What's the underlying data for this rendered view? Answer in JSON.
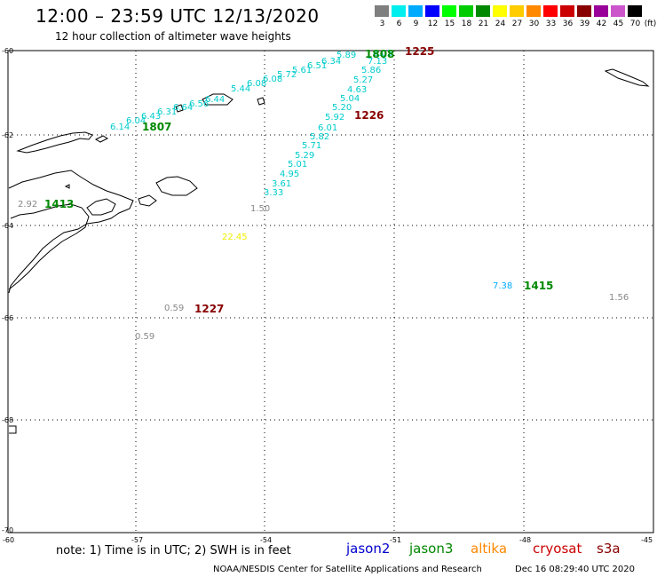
{
  "header": {
    "title": "12:00 – 23:59 UTC 12/13/2020",
    "subtitle": "12 hour collection of altimeter wave heights"
  },
  "legend": {
    "unit": "(ft)",
    "bins": [
      {
        "label": "3",
        "color": "#7f7f7f"
      },
      {
        "label": "6",
        "color": "#00eeee"
      },
      {
        "label": "9",
        "color": "#00aaff"
      },
      {
        "label": "12",
        "color": "#0000ff"
      },
      {
        "label": "15",
        "color": "#00ff00"
      },
      {
        "label": "18",
        "color": "#00cc00"
      },
      {
        "label": "21",
        "color": "#008800"
      },
      {
        "label": "24",
        "color": "#ffff00"
      },
      {
        "label": "27",
        "color": "#ffcc00"
      },
      {
        "label": "30",
        "color": "#ff8800"
      },
      {
        "label": "33",
        "color": "#ff0000"
      },
      {
        "label": "36",
        "color": "#cc0000"
      },
      {
        "label": "39",
        "color": "#880000"
      },
      {
        "label": "42",
        "color": "#990099"
      },
      {
        "label": "45",
        "color": "#cc55cc"
      },
      {
        "label": "70",
        "color": "#000000"
      }
    ]
  },
  "axes": {
    "lon_labels": [
      "-60",
      "-57",
      "-54",
      "-51",
      "-48",
      "-45"
    ],
    "lat_labels": [
      "-60",
      "-62",
      "-64",
      "-66",
      "-68",
      "-70"
    ]
  },
  "observations": [
    {
      "value": "6.14",
      "color": "#00cccc"
    },
    {
      "value": "6.04",
      "color": "#00cccc"
    },
    {
      "value": "6.43",
      "color": "#00cccc"
    },
    {
      "value": "6.31",
      "color": "#00cccc"
    },
    {
      "value": "6.64",
      "color": "#00cccc"
    },
    {
      "value": "6.56",
      "color": "#00cccc"
    },
    {
      "value": "6.44",
      "color": "#00cccc"
    },
    {
      "value": "5.44",
      "color": "#00cccc"
    },
    {
      "value": "6.08",
      "color": "#00cccc"
    },
    {
      "value": "6.08",
      "color": "#00cccc"
    },
    {
      "value": "5.72",
      "color": "#00cccc"
    },
    {
      "value": "5.61",
      "color": "#00cccc"
    },
    {
      "value": "6.51",
      "color": "#00cccc"
    },
    {
      "value": "6.34",
      "color": "#00cccc"
    },
    {
      "value": "5.89",
      "color": "#00cccc"
    },
    {
      "value": "6.05",
      "color": "#00cccc"
    },
    {
      "value": "7.13",
      "color": "#00cccc"
    },
    {
      "value": "5.86",
      "color": "#00cccc"
    },
    {
      "value": "5.27",
      "color": "#00cccc"
    },
    {
      "value": "4.63",
      "color": "#00cccc"
    },
    {
      "value": "5.04",
      "color": "#00cccc"
    },
    {
      "value": "5.20",
      "color": "#00cccc"
    },
    {
      "value": "5.92",
      "color": "#00cccc"
    },
    {
      "value": "6.01",
      "color": "#00cccc"
    },
    {
      "value": "5.82",
      "color": "#00cccc"
    },
    {
      "value": "5.71",
      "color": "#00cccc"
    },
    {
      "value": "5.29",
      "color": "#00cccc"
    },
    {
      "value": "5.01",
      "color": "#00cccc"
    },
    {
      "value": "4.95",
      "color": "#00cccc"
    },
    {
      "value": "3.61",
      "color": "#00cccc"
    },
    {
      "value": "3.33",
      "color": "#00cccc"
    },
    {
      "value": "1.50",
      "color": "#888888"
    },
    {
      "value": "2.92",
      "color": "#888888"
    },
    {
      "value": "22.45",
      "color": "#eeee00"
    },
    {
      "value": "7.38",
      "color": "#00aaff"
    },
    {
      "value": "1.56",
      "color": "#888888"
    },
    {
      "value": "0.59",
      "color": "#888888"
    },
    {
      "value": "0.59",
      "color": "#888888"
    }
  ],
  "time_labels": [
    {
      "text": "1225",
      "color": "#880000"
    },
    {
      "text": "1808",
      "color": "#008800"
    },
    {
      "text": "1807",
      "color": "#008800"
    },
    {
      "text": "1226",
      "color": "#880000"
    },
    {
      "text": "1413",
      "color": "#008800"
    },
    {
      "text": "1415",
      "color": "#008800"
    },
    {
      "text": "1227",
      "color": "#880000"
    }
  ],
  "footer": {
    "note": "note: 1) Time is in UTC; 2) SWH is in feet",
    "satellites": [
      {
        "name": "jason2",
        "color": "#0000cc"
      },
      {
        "name": "jason3",
        "color": "#008800"
      },
      {
        "name": "altika",
        "color": "#ff8800"
      },
      {
        "name": "cryosat",
        "color": "#cc0000"
      },
      {
        "name": "s3a",
        "color": "#880000"
      }
    ],
    "org": "NOAA/NESDIS Center for Satellite Applications and Research",
    "timestamp": "Dec 16 08:29:40 UTC 2020"
  }
}
